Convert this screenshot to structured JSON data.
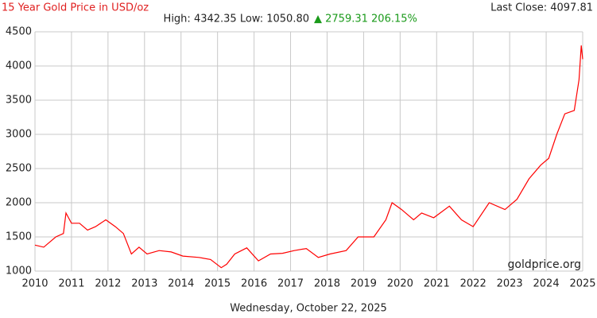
{
  "chart_data": {
    "type": "line",
    "title": "15 Year Gold Price in USD/oz",
    "stats": "High: 4342.35 Low: 1050.80",
    "change": "▲ 2759.31 206.15%",
    "last_close": "Last Close: 4097.81",
    "watermark": "goldprice.org",
    "date": "Wednesday, October 22, 2025",
    "series": [
      {
        "name": "Gold",
        "color": "#ff0000",
        "x": [
          2010,
          2010.24,
          2010.57,
          2010.78,
          2010.85,
          2011.0,
          2011.22,
          2011.44,
          2011.66,
          2011.94,
          2012.2,
          2012.42,
          2012.64,
          2012.85,
          2013.07,
          2013.4,
          2013.73,
          2014.05,
          2014.49,
          2014.81,
          2015.1,
          2015.25,
          2015.47,
          2015.8,
          2016.12,
          2016.45,
          2016.78,
          2017.1,
          2017.43,
          2017.76,
          2018.08,
          2018.52,
          2018.85,
          2019.28,
          2019.61,
          2019.78,
          2020.04,
          2020.37,
          2020.59,
          2020.92,
          2021.35,
          2021.68,
          2022.0,
          2022.44,
          2022.87,
          2023.2,
          2023.53,
          2023.85,
          2024.07,
          2024.29,
          2024.51,
          2024.77,
          2024.9,
          2024.96,
          2025.0
        ],
        "values": [
          1380,
          1350,
          1500,
          1550,
          1850,
          1700,
          1700,
          1600,
          1650,
          1750,
          1650,
          1550,
          1250,
          1350,
          1250,
          1300,
          1280,
          1220,
          1200,
          1170,
          1050,
          1100,
          1250,
          1340,
          1150,
          1250,
          1260,
          1300,
          1330,
          1200,
          1250,
          1300,
          1500,
          1500,
          1750,
          2000,
          1900,
          1750,
          1850,
          1780,
          1950,
          1750,
          1650,
          2000,
          1900,
          2050,
          2350,
          2550,
          2650,
          3000,
          3300,
          3350,
          3800,
          4300,
          4100
        ]
      }
    ],
    "xlim": [
      2010,
      2025
    ],
    "xticks": [
      2010,
      2011,
      2012,
      2013,
      2014,
      2015,
      2016,
      2017,
      2018,
      2019,
      2020,
      2021,
      2022,
      2023,
      2024,
      2025
    ],
    "ylim": [
      1000,
      4500
    ],
    "yticks": [
      1000,
      1500,
      2000,
      2500,
      3000,
      3500,
      4000,
      4500
    ],
    "grid": true
  }
}
